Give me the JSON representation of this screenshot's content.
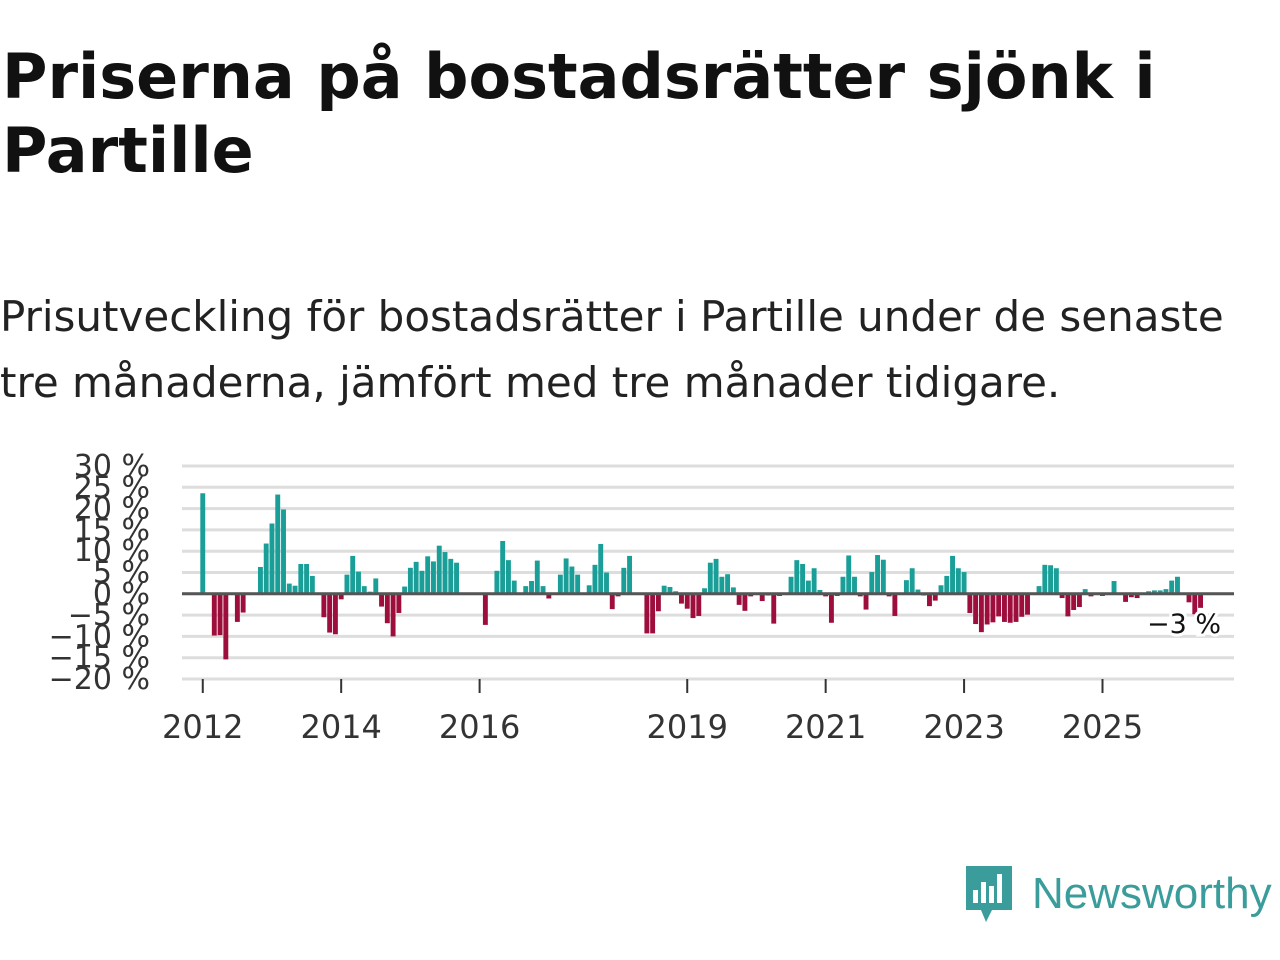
{
  "title": "Priserna på bostadsrätter sjönk i Partille",
  "subtitle": "Prisutveckling för bostadsrätter i Partille under de senaste tre månaderna, jämfört med tre månader tidigare.",
  "brand": {
    "name": "Newsworthy",
    "icon": "newsworthy-logo-icon",
    "color": "#3a9d9b"
  },
  "colors": {
    "positive": "#1a9e98",
    "negative": "#9e0e3d",
    "grid": "#dddddd",
    "zero": "#555555"
  },
  "chart_data": {
    "type": "bar",
    "title": "",
    "xlabel": "",
    "ylabel": "",
    "ylim": [
      -20,
      30
    ],
    "y_ticks": [
      30,
      25,
      20,
      15,
      10,
      5,
      0,
      -5,
      -10,
      -15,
      -20
    ],
    "y_tick_labels": [
      "30 %",
      "25 %",
      "20 %",
      "15 %",
      "10 %",
      "5 %",
      "0 %",
      "−5 %",
      "−10 %",
      "−15 %",
      "−20 %"
    ],
    "x_range": [
      2011.7,
      2026.9
    ],
    "x_ticks": [
      2012,
      2014,
      2016,
      2019,
      2021,
      2023,
      2025
    ],
    "x_tick_labels": [
      "2012",
      "2014",
      "2016",
      "2019",
      "2021",
      "2023",
      "2025"
    ],
    "start": [
      2012,
      1
    ],
    "values": [
      23.6,
      null,
      -9.8,
      -9.7,
      -15.4,
      null,
      -6.6,
      -4.4,
      null,
      null,
      6.3,
      11.8,
      16.5,
      23.3,
      19.8,
      2.4,
      1.9,
      7,
      7,
      4.2,
      null,
      -5.5,
      -9.1,
      -9.5,
      -1.3,
      4.5,
      8.9,
      5.2,
      1.8,
      0.5,
      3.6,
      -3,
      -6.9,
      -10,
      -4.5,
      1.7,
      6.1,
      7.5,
      5.4,
      8.8,
      7.6,
      11.3,
      9.8,
      8.2,
      7.3,
      null,
      null,
      null,
      null,
      -7.3,
      null,
      5.4,
      12.4,
      7.9,
      3.1,
      null,
      1.8,
      3,
      7.8,
      1.8,
      -1.1,
      null,
      4.5,
      8.3,
      6.4,
      4.5,
      null,
      2,
      6.8,
      11.7,
      5,
      -3.6,
      -0.6,
      6.1,
      8.9,
      null,
      null,
      -9.3,
      -9.3,
      -4.1,
      1.9,
      1.6,
      0.6,
      -2.3,
      -3.5,
      -5.7,
      -5.2,
      1.3,
      7.3,
      8.2,
      4,
      4.6,
      1.5,
      -2.6,
      -4,
      -0.6,
      null,
      -1.7,
      -0.4,
      -7,
      -0.5,
      null,
      4,
      7.9,
      7,
      3.1,
      6,
      0.9,
      -0.6,
      -6.8,
      -0.5,
      4,
      9,
      4,
      -0.6,
      -3.7,
      5.1,
      9.1,
      8,
      -0.6,
      -5.2,
      null,
      3.2,
      6,
      1,
      -0.4,
      -2.9,
      -1.6,
      2,
      4.2,
      8.9,
      6,
      5.1,
      -4.5,
      -7.1,
      -9,
      -7.2,
      -6.7,
      -5.3,
      -6.6,
      -6.8,
      -6.6,
      -5.4,
      -4.9,
      null,
      1.8,
      6.8,
      6.7,
      6,
      -1,
      -5.3,
      -3.8,
      -3.1,
      1.1,
      -0.6,
      null,
      -0.5,
      null,
      3,
      null,
      -1.9,
      -0.8,
      -1,
      null,
      0.6,
      0.8,
      0.8,
      1.1,
      3.1,
      4,
      null,
      -2,
      -4.8,
      -3.3
    ],
    "annotation": {
      "text": "−3 %",
      "index": 180
    }
  }
}
